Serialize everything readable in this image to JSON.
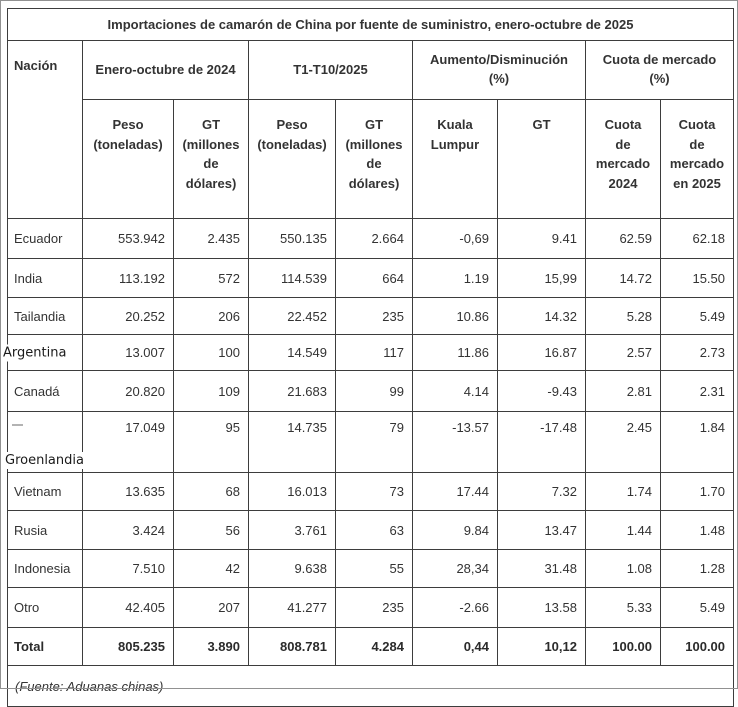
{
  "chart_data": {
    "type": "table",
    "title": "Importaciones de camarón de China por fuente de suministro, enero-octubre de 2025",
    "group_headers": [
      "Nación",
      "Enero-octubre de 2024",
      "T1-T10/2025",
      [
        "Aumento/Disminución",
        "(%)"
      ],
      [
        "Cuota de mercado",
        "(%)"
      ]
    ],
    "sub_headers": [
      [
        "Peso",
        "(toneladas)"
      ],
      [
        "GT",
        "(millones",
        "de",
        "dólares)"
      ],
      [
        "Peso",
        "(toneladas)"
      ],
      [
        "GT",
        "(millones",
        "de",
        "dólares)"
      ],
      [
        "Kuala",
        "Lumpur"
      ],
      "GT",
      [
        "Cuota",
        "de",
        "mercado",
        "2024"
      ],
      [
        "Cuota",
        "de",
        "mercado",
        "en 2025"
      ]
    ],
    "rows": [
      {
        "name": "Ecuador",
        "values": [
          "553.942",
          "2.435",
          "550.135",
          "2.664",
          "-0,69",
          "9.41",
          "62.59",
          "62.18"
        ]
      },
      {
        "name": "India",
        "values": [
          "113.192",
          "572",
          "114.539",
          "664",
          "1.19",
          "15,99",
          "14.72",
          "15.50"
        ]
      },
      {
        "name": "Tailandia",
        "values": [
          "20.252",
          "206",
          "22.452",
          "235",
          "10.86",
          "14.32",
          "5.28",
          "5.49"
        ]
      },
      {
        "name": "Argentina",
        "overlay": true,
        "values": [
          "13.007",
          "100",
          "14.549",
          "117",
          "11.86",
          "16.87",
          "2.57",
          "2.73"
        ]
      },
      {
        "name": "Canadá",
        "values": [
          "20.820",
          "109",
          "21.683",
          "99",
          "4.14",
          "-9.43",
          "2.81",
          "2.31"
        ]
      },
      {
        "name": "Groenlandia",
        "overlay": true,
        "dash": true,
        "tall": true,
        "values": [
          "17.049",
          "95",
          "14.735",
          "79",
          "-13.57",
          "-17.48",
          "2.45",
          "1.84"
        ]
      },
      {
        "name": "Vietnam",
        "values": [
          "13.635",
          "68",
          "16.013",
          "73",
          "17.44",
          "7.32",
          "1.74",
          "1.70"
        ]
      },
      {
        "name": "Rusia",
        "values": [
          "3.424",
          "56",
          "3.761",
          "63",
          "9.84",
          "13.47",
          "1.44",
          "1.48"
        ]
      },
      {
        "name": "Indonesia",
        "values": [
          "7.510",
          "42",
          "9.638",
          "55",
          "28,34",
          "31.48",
          "1.08",
          "1.28"
        ]
      },
      {
        "name": "Otro",
        "values": [
          "42.405",
          "207",
          "41.277",
          "235",
          "-2.66",
          "13.58",
          "5.33",
          "5.49"
        ]
      },
      {
        "name": "Total",
        "bold": true,
        "values": [
          "805.235",
          "3.890",
          "808.781",
          "4.284",
          "0,44",
          "10,12",
          "100.00",
          "100.00"
        ]
      }
    ],
    "source_note": "(Fuente: Aduanas chinas)"
  },
  "colors": {
    "border": "#3d3d3d",
    "outer_frame": "#919191",
    "text": "#333333",
    "dash_mark": "#b3b3b3",
    "background": "#ffffff"
  }
}
